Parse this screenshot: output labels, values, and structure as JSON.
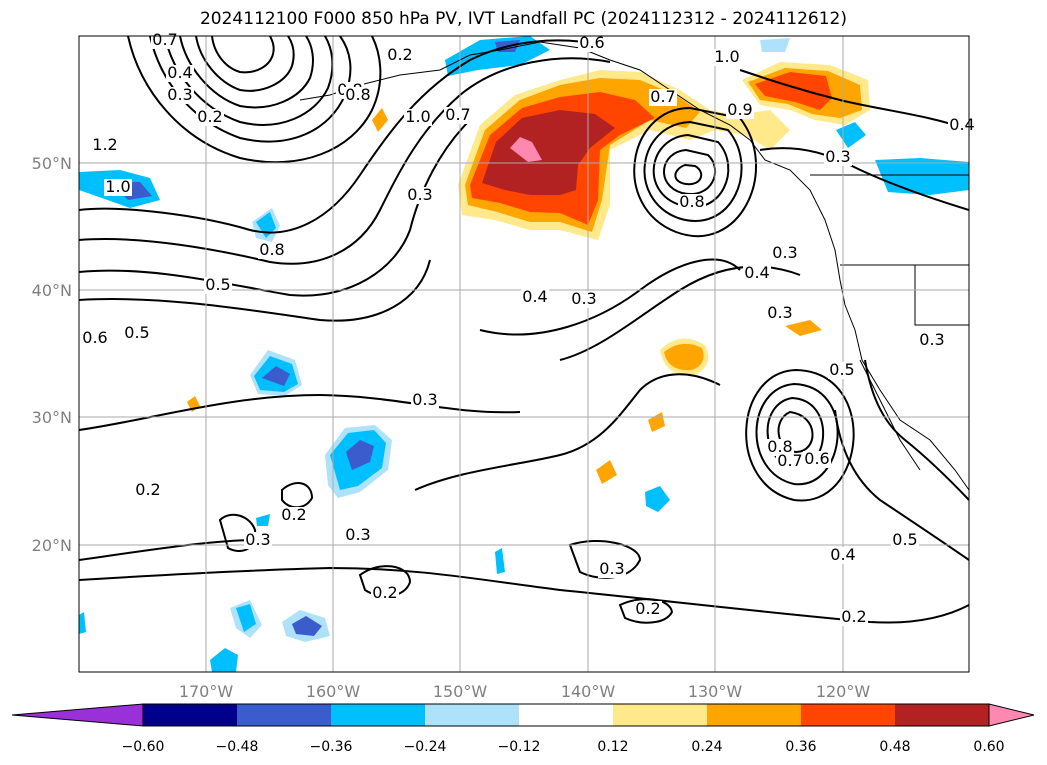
{
  "title": "2024112100 F000 850 hPa PV, IVT Landfall PC (2024112312 - 2024112612)",
  "map": {
    "lat_labels": [
      "50°N",
      "40°N",
      "30°N",
      "20°N"
    ],
    "lon_labels": [
      "170°W",
      "160°W",
      "150°W",
      "140°W",
      "130°W",
      "120°W"
    ],
    "contour_labels": [
      "0.7",
      "0.4",
      "0.3",
      "0.2",
      "1.2",
      "1.0",
      "0.8",
      "0.2",
      "0.8",
      "1.0",
      "0.7",
      "0.6",
      "1.0",
      "0.7",
      "0.8",
      "0.9",
      "0.3",
      "0.8",
      "0.5",
      "0.6",
      "0.5",
      "0.4",
      "0.3",
      "0.3",
      "0.4",
      "0.3",
      "0.5",
      "0.3",
      "0.4",
      "0.3",
      "0.8",
      "0.7",
      "0.6",
      "0.2",
      "0.2",
      "0.3",
      "0.3",
      "0.2",
      "0.3",
      "0.2",
      "0.2",
      "0.4",
      "0.5",
      "0.3"
    ]
  },
  "colorbar": {
    "colors": [
      "#9a30d8",
      "#00008b",
      "#3a5ccc",
      "#00bfff",
      "#aee2fa",
      "#ffffff",
      "#ffe98a",
      "#ffa500",
      "#ff4500",
      "#b22222",
      "#ff88b0"
    ],
    "tick_labels": [
      "−0.60",
      "−0.48",
      "−0.36",
      "−0.24",
      "−0.12",
      "0.12",
      "0.24",
      "0.36",
      "0.48",
      "0.60"
    ]
  }
}
